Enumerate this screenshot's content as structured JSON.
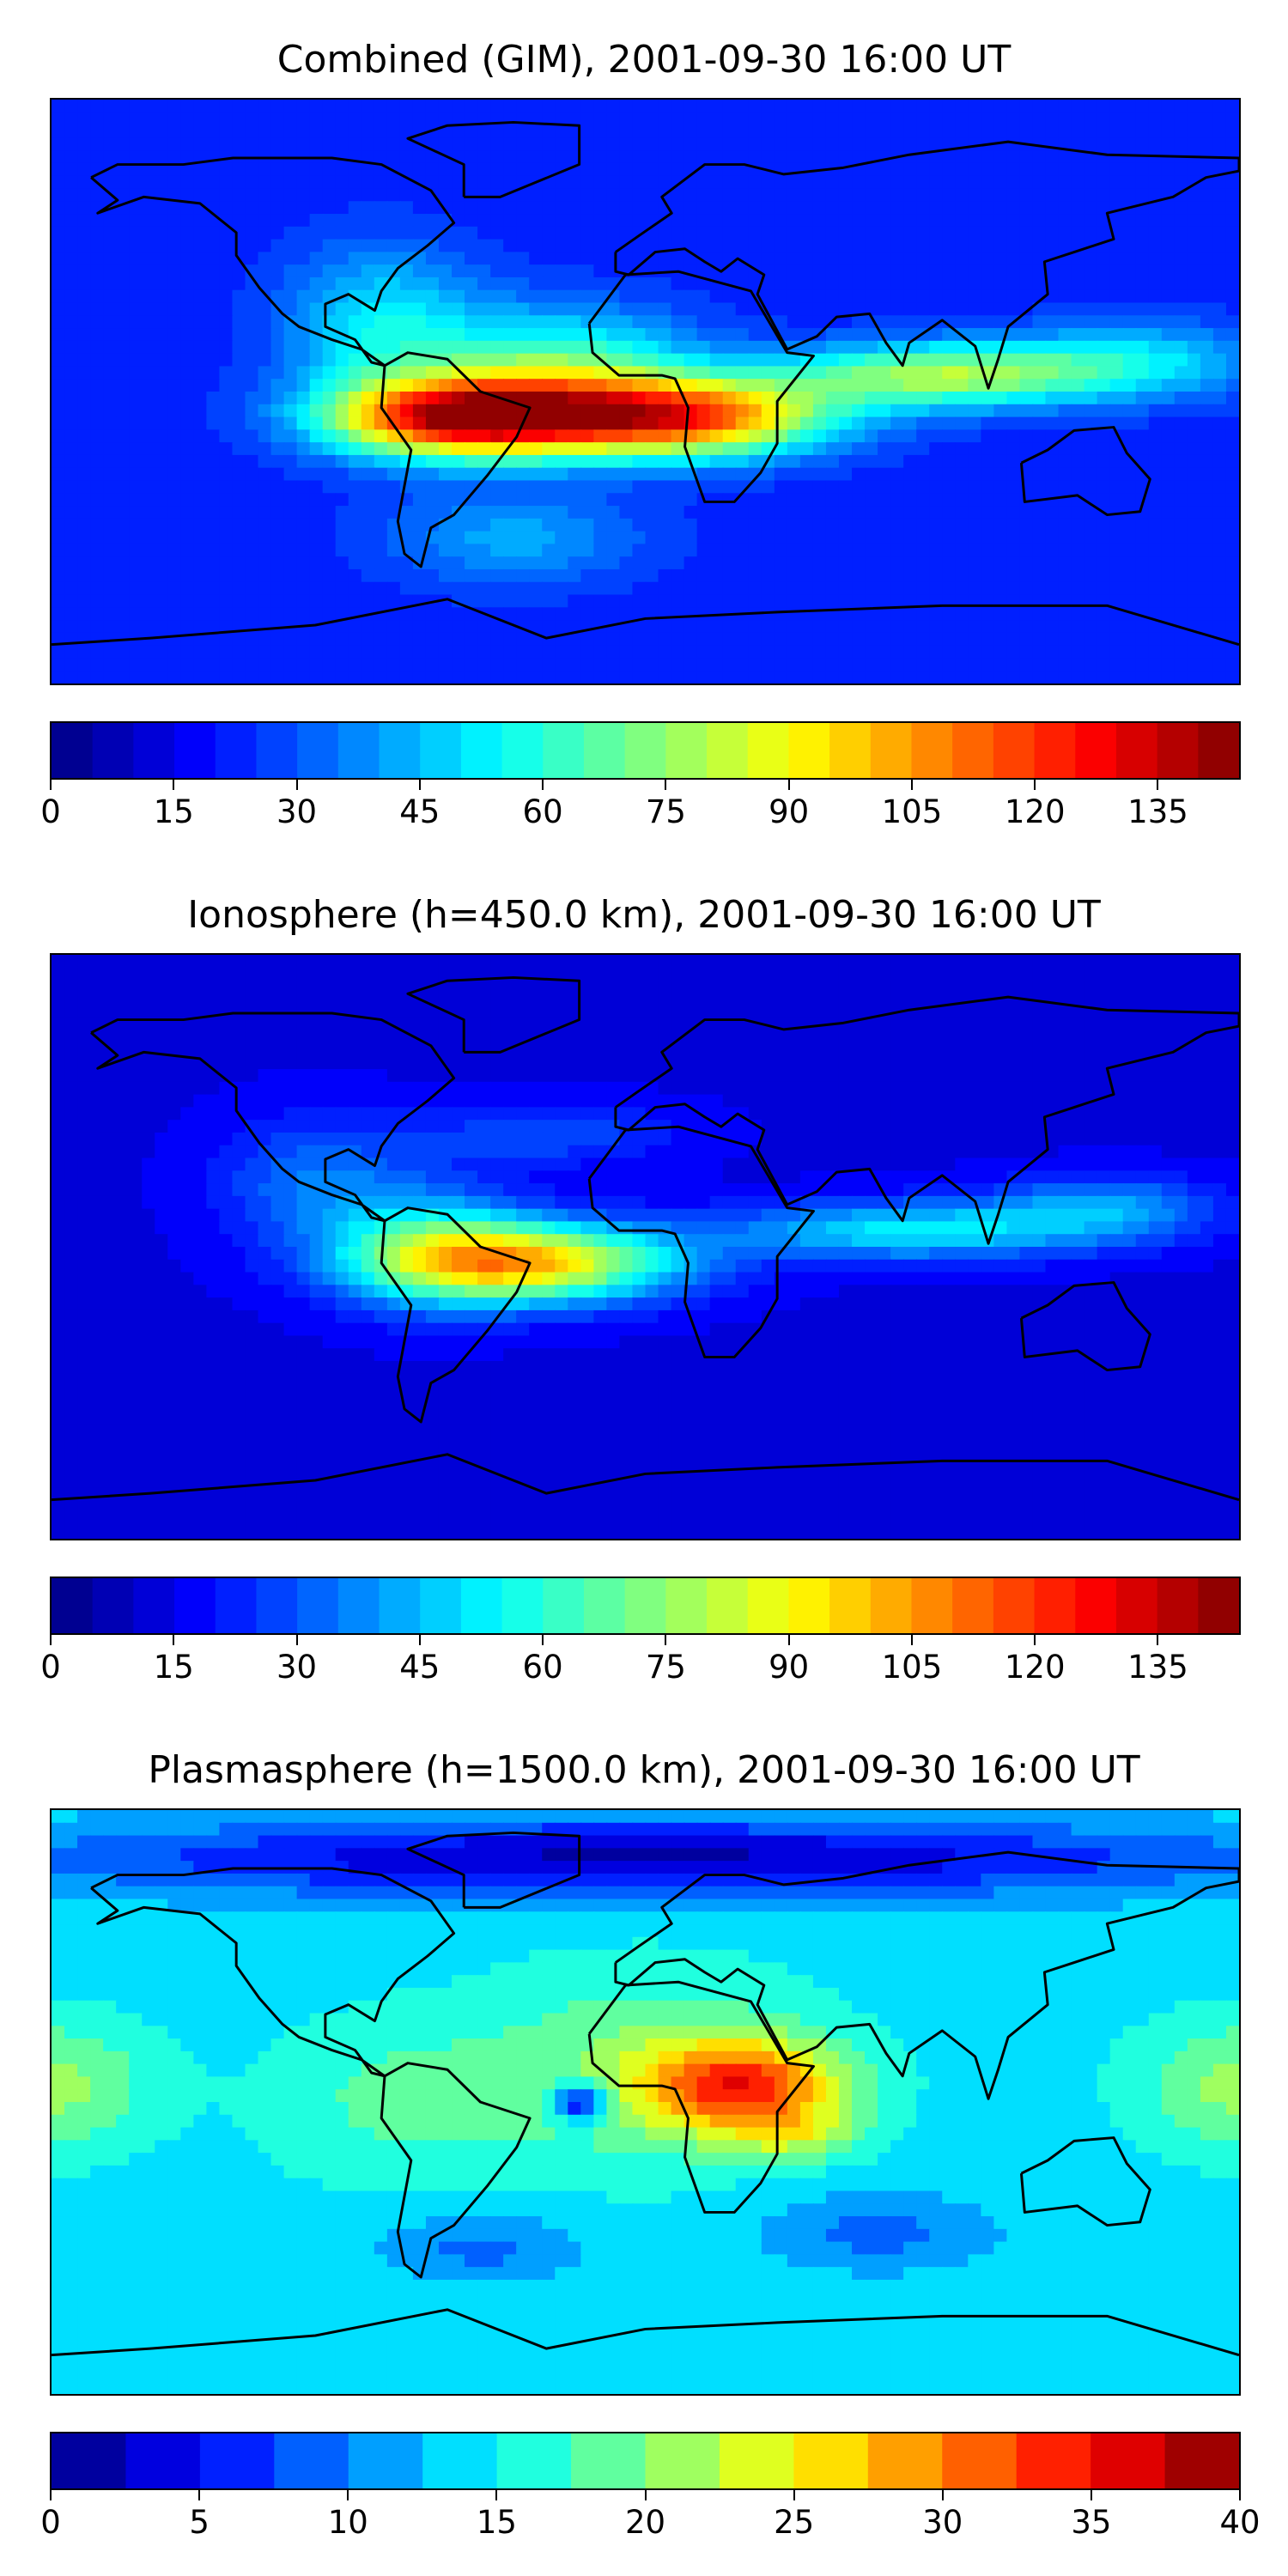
{
  "chart_data": [
    {
      "type": "heatmap",
      "title": "Combined (GIM), 2001-09-30 16:00 UT",
      "colormap": "jet",
      "colorbar": {
        "range": [
          0,
          145
        ],
        "levels": 29,
        "ticks": [
          0,
          15,
          30,
          45,
          60,
          75,
          90,
          105,
          120,
          135
        ],
        "tick_labels": [
          "0",
          "15",
          "30",
          "45",
          "60",
          "75",
          "90",
          "105",
          "120",
          "135"
        ]
      },
      "field": {
        "background": 22,
        "features": [
          {
            "lon": -55,
            "lat": -8,
            "amp": 110,
            "slon": 40,
            "slat": 12
          },
          {
            "lon": 10,
            "lat": -8,
            "amp": 95,
            "slon": 45,
            "slat": 12
          },
          {
            "lon": -25,
            "lat": 8,
            "amp": 40,
            "slon": 40,
            "slat": 18
          },
          {
            "lon": 90,
            "lat": 5,
            "amp": 55,
            "slon": 50,
            "slat": 10
          },
          {
            "lon": 150,
            "lat": 10,
            "amp": 25,
            "slon": 40,
            "slat": 12
          },
          {
            "lon": -80,
            "lat": 20,
            "amp": 30,
            "slon": 30,
            "slat": 25
          },
          {
            "lon": -40,
            "lat": -45,
            "amp": 20,
            "slon": 40,
            "slat": 15
          }
        ]
      }
    },
    {
      "type": "heatmap",
      "title": "Ionosphere  (h=450.0 km), 2001-09-30 16:00 UT",
      "colormap": "jet",
      "colorbar": {
        "range": [
          0,
          145
        ],
        "levels": 29,
        "ticks": [
          0,
          15,
          30,
          45,
          60,
          75,
          90,
          105,
          120,
          135
        ],
        "tick_labels": [
          "0",
          "15",
          "30",
          "45",
          "60",
          "75",
          "90",
          "105",
          "120",
          "135"
        ]
      },
      "field": {
        "background": 14,
        "features": [
          {
            "lon": -35,
            "lat": -5,
            "amp": 80,
            "slon": 45,
            "slat": 12
          },
          {
            "lon": -65,
            "lat": 0,
            "amp": 35,
            "slon": 30,
            "slat": 18
          },
          {
            "lon": 80,
            "lat": 5,
            "amp": 38,
            "slon": 55,
            "slat": 9
          },
          {
            "lon": 140,
            "lat": 12,
            "amp": 25,
            "slon": 35,
            "slat": 10
          },
          {
            "lon": -100,
            "lat": 20,
            "amp": 20,
            "slon": 30,
            "slat": 20
          },
          {
            "lon": -30,
            "lat": 35,
            "amp": 15,
            "slon": 40,
            "slat": 10
          }
        ]
      }
    },
    {
      "type": "heatmap",
      "title": "Plasmasphere (h=1500.0 km), 2001-09-30 16:00 UT",
      "colormap": "jet",
      "colorbar": {
        "range": [
          0,
          40
        ],
        "levels": 16,
        "ticks": [
          0,
          5,
          10,
          15,
          20,
          25,
          30,
          35,
          40
        ],
        "tick_labels": [
          "0",
          "5",
          "10",
          "15",
          "20",
          "25",
          "30",
          "35",
          "40"
        ]
      },
      "field": {
        "background": 14,
        "features": [
          {
            "lon": 30,
            "lat": 5,
            "amp": 17,
            "slon": 30,
            "slat": 14
          },
          {
            "lon": 45,
            "lat": -10,
            "amp": 6,
            "slon": 20,
            "slat": 8
          },
          {
            "lon": 0,
            "lat": 10,
            "amp": 6,
            "slon": 50,
            "slat": 30
          },
          {
            "lon": -180,
            "lat": 5,
            "amp": 7,
            "slon": 30,
            "slat": 20
          },
          {
            "lon": 180,
            "lat": 5,
            "amp": 7,
            "slon": 30,
            "slat": 20
          },
          {
            "lon": -20,
            "lat": 0,
            "amp": -14,
            "slon": 8,
            "slat": 6
          },
          {
            "lon": -75,
            "lat": 0,
            "amp": 4,
            "slon": 40,
            "slat": 25
          },
          {
            "lon": 0,
            "lat": 75,
            "amp": -12,
            "slon": 180,
            "slat": 12
          },
          {
            "lon": -50,
            "lat": -45,
            "amp": -5,
            "slon": 30,
            "slat": 10
          },
          {
            "lon": 70,
            "lat": -40,
            "amp": -5,
            "slon": 35,
            "slat": 12
          }
        ]
      }
    }
  ]
}
